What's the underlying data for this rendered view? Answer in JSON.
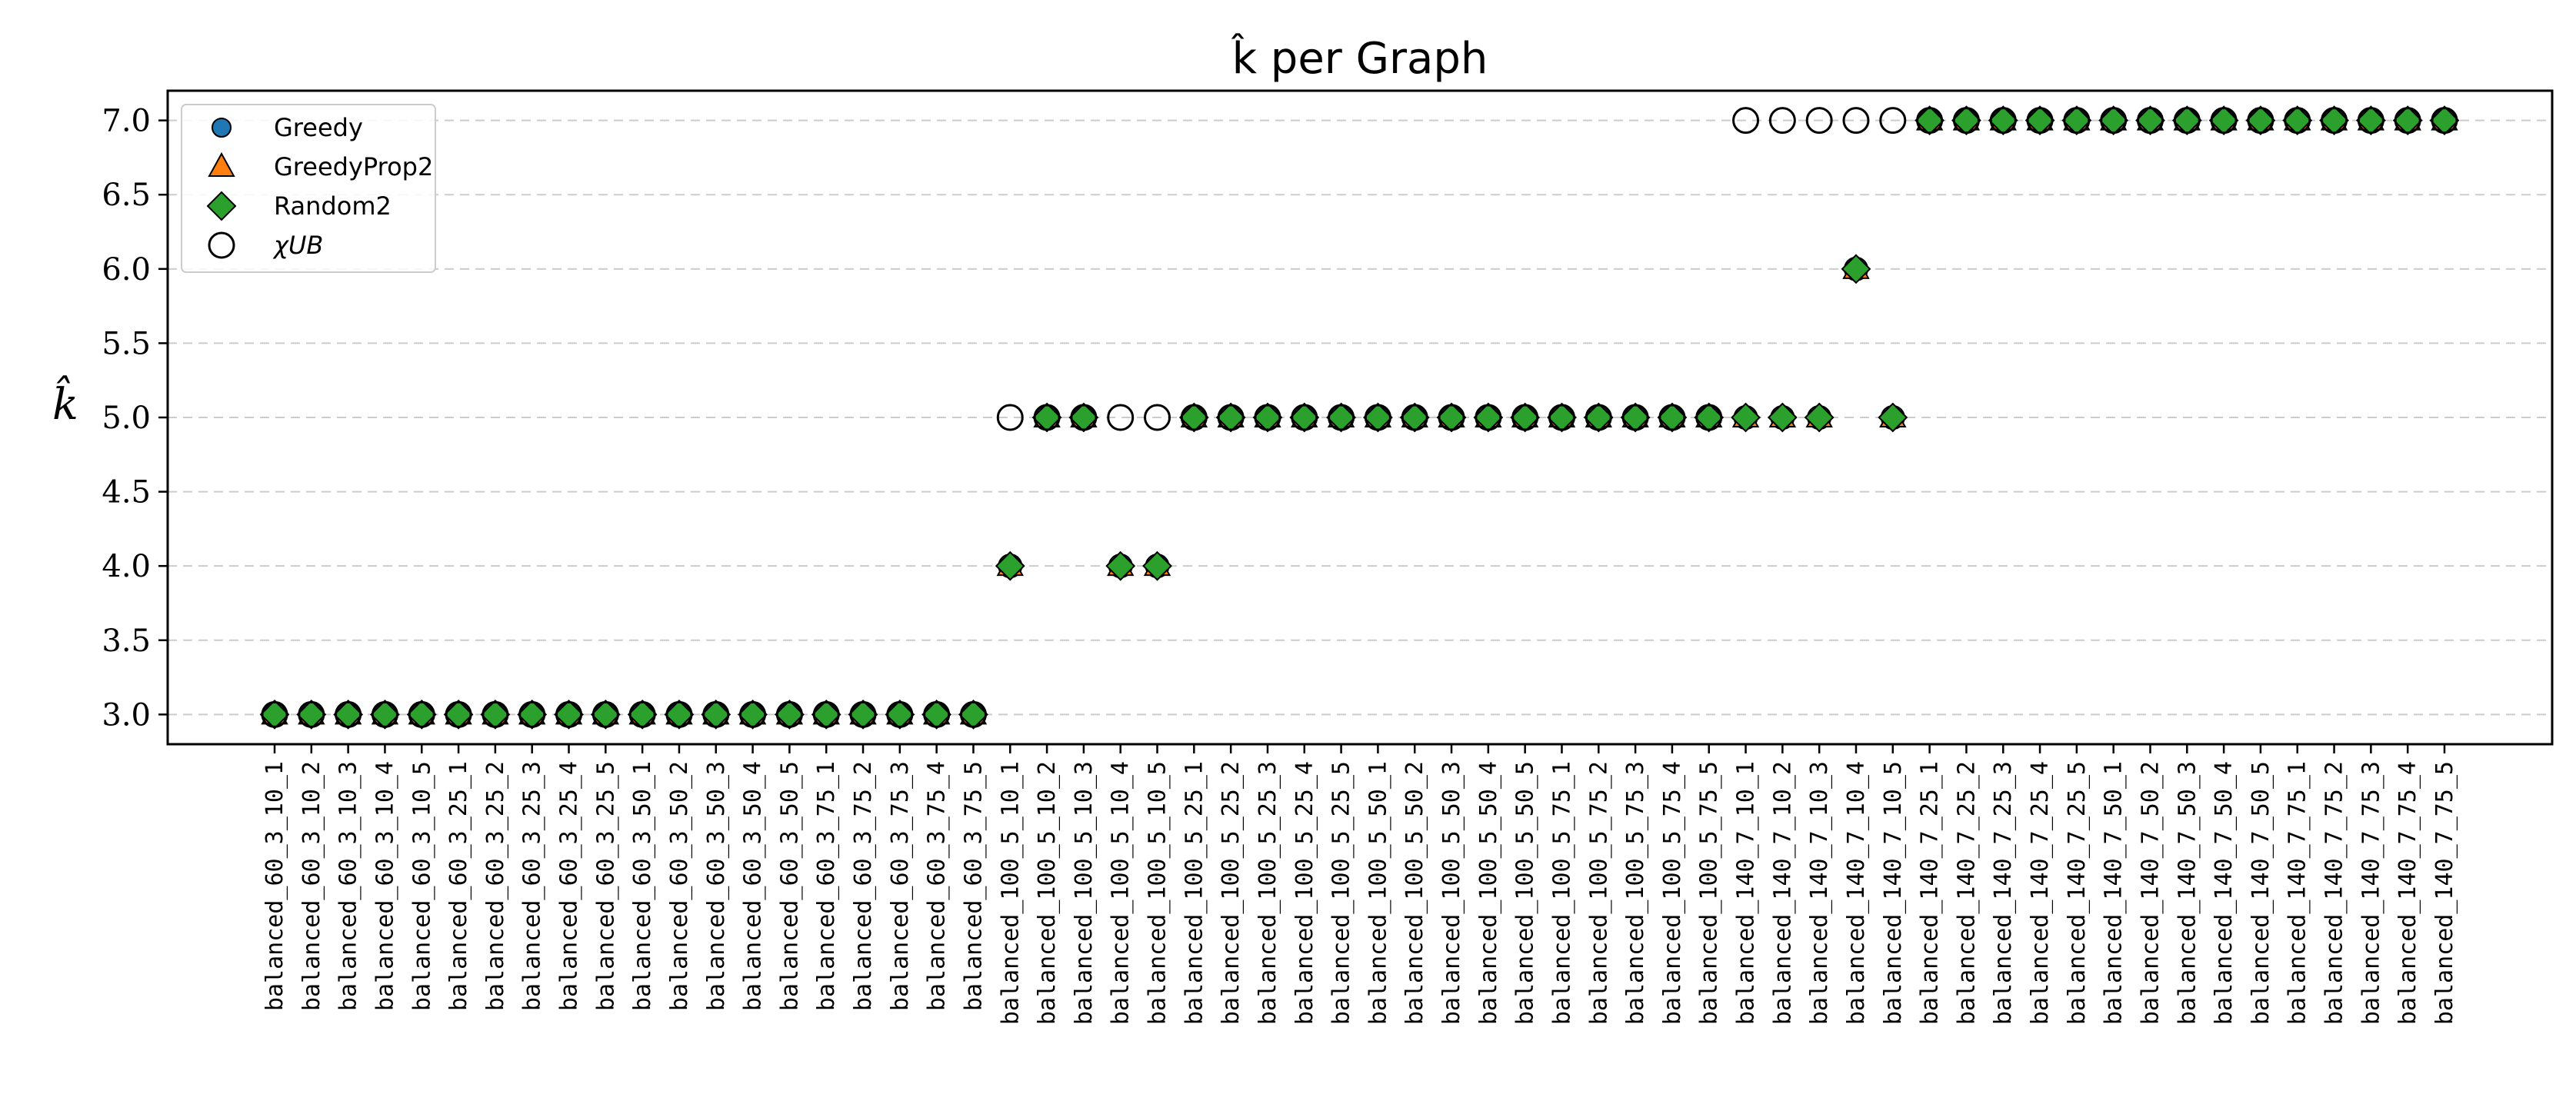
{
  "chart_data": {
    "type": "scatter",
    "title": "k̂ per Graph",
    "xlabel": "",
    "ylabel": "k̂",
    "ylim": [
      2.8,
      7.2
    ],
    "yticks": [
      "3.0",
      "3.5",
      "4.0",
      "4.5",
      "5.0",
      "5.5",
      "6.0",
      "6.5",
      "7.0"
    ],
    "grid": "horizontal dashed",
    "legend_position": "top-left",
    "categories": [
      "balanced_60_3_10_1",
      "balanced_60_3_10_2",
      "balanced_60_3_10_3",
      "balanced_60_3_10_4",
      "balanced_60_3_10_5",
      "balanced_60_3_25_1",
      "balanced_60_3_25_2",
      "balanced_60_3_25_3",
      "balanced_60_3_25_4",
      "balanced_60_3_25_5",
      "balanced_60_3_50_1",
      "balanced_60_3_50_2",
      "balanced_60_3_50_3",
      "balanced_60_3_50_4",
      "balanced_60_3_50_5",
      "balanced_60_3_75_1",
      "balanced_60_3_75_2",
      "balanced_60_3_75_3",
      "balanced_60_3_75_4",
      "balanced_60_3_75_5",
      "balanced_100_5_10_1",
      "balanced_100_5_10_2",
      "balanced_100_5_10_3",
      "balanced_100_5_10_4",
      "balanced_100_5_10_5",
      "balanced_100_5_25_1",
      "balanced_100_5_25_2",
      "balanced_100_5_25_3",
      "balanced_100_5_25_4",
      "balanced_100_5_25_5",
      "balanced_100_5_50_1",
      "balanced_100_5_50_2",
      "balanced_100_5_50_3",
      "balanced_100_5_50_4",
      "balanced_100_5_50_5",
      "balanced_100_5_75_1",
      "balanced_100_5_75_2",
      "balanced_100_5_75_3",
      "balanced_100_5_75_4",
      "balanced_100_5_75_5",
      "balanced_140_7_10_1",
      "balanced_140_7_10_2",
      "balanced_140_7_10_3",
      "balanced_140_7_10_4",
      "balanced_140_7_10_5",
      "balanced_140_7_25_1",
      "balanced_140_7_25_2",
      "balanced_140_7_25_3",
      "balanced_140_7_25_4",
      "balanced_140_7_25_5",
      "balanced_140_7_50_1",
      "balanced_140_7_50_2",
      "balanced_140_7_50_3",
      "balanced_140_7_50_4",
      "balanced_140_7_50_5",
      "balanced_140_7_75_1",
      "balanced_140_7_75_2",
      "balanced_140_7_75_3",
      "balanced_140_7_75_4",
      "balanced_140_7_75_5"
    ],
    "series": [
      {
        "name": "Greedy",
        "marker": "circle",
        "color": "#1f77b4",
        "values": [
          3,
          3,
          3,
          3,
          3,
          3,
          3,
          3,
          3,
          3,
          3,
          3,
          3,
          3,
          3,
          3,
          3,
          3,
          3,
          3,
          4,
          5,
          5,
          4,
          4,
          5,
          5,
          5,
          5,
          5,
          5,
          5,
          5,
          5,
          5,
          5,
          5,
          5,
          5,
          5,
          5,
          5,
          5,
          6,
          5,
          7,
          7,
          7,
          7,
          7,
          7,
          7,
          7,
          7,
          7,
          7,
          7,
          7,
          7,
          7
        ]
      },
      {
        "name": "GreedyProp2",
        "marker": "triangle",
        "color": "#ff7f0e",
        "values": [
          3,
          3,
          3,
          3,
          3,
          3,
          3,
          3,
          3,
          3,
          3,
          3,
          3,
          3,
          3,
          3,
          3,
          3,
          3,
          3,
          4,
          5,
          5,
          4,
          4,
          5,
          5,
          5,
          5,
          5,
          5,
          5,
          5,
          5,
          5,
          5,
          5,
          5,
          5,
          5,
          5,
          5,
          5,
          6,
          5,
          7,
          7,
          7,
          7,
          7,
          7,
          7,
          7,
          7,
          7,
          7,
          7,
          7,
          7,
          7
        ]
      },
      {
        "name": "Random2",
        "marker": "diamond",
        "color": "#2ca02c",
        "values": [
          3,
          3,
          3,
          3,
          3,
          3,
          3,
          3,
          3,
          3,
          3,
          3,
          3,
          3,
          3,
          3,
          3,
          3,
          3,
          3,
          4,
          5,
          5,
          4,
          4,
          5,
          5,
          5,
          5,
          5,
          5,
          5,
          5,
          5,
          5,
          5,
          5,
          5,
          5,
          5,
          5,
          5,
          5,
          6,
          5,
          7,
          7,
          7,
          7,
          7,
          7,
          7,
          7,
          7,
          7,
          7,
          7,
          7,
          7,
          7
        ]
      },
      {
        "name": "χUB",
        "marker": "open-circle",
        "color": "#000000",
        "values": [
          3,
          3,
          3,
          3,
          3,
          3,
          3,
          3,
          3,
          3,
          3,
          3,
          3,
          3,
          3,
          3,
          3,
          3,
          3,
          3,
          5,
          5,
          5,
          5,
          5,
          5,
          5,
          5,
          5,
          5,
          5,
          5,
          5,
          5,
          5,
          5,
          5,
          5,
          5,
          5,
          7,
          7,
          7,
          7,
          7,
          7,
          7,
          7,
          7,
          7,
          7,
          7,
          7,
          7,
          7,
          7,
          7,
          7,
          7,
          7
        ]
      }
    ]
  }
}
